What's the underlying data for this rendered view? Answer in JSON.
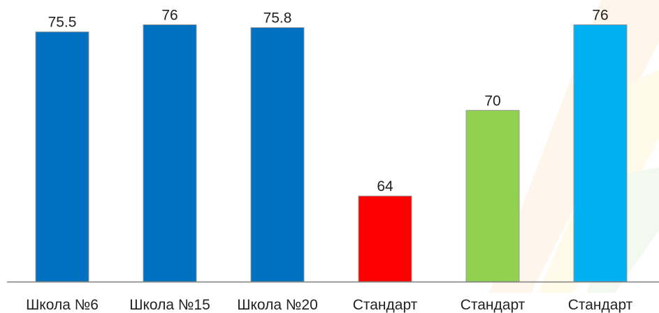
{
  "chart_data": {
    "type": "bar",
    "categories": [
      "Школа №6",
      "Школа №15",
      "Школа №20",
      "Стандарт",
      "Стандарт",
      "Стандарт"
    ],
    "values": [
      75.5,
      76,
      75.8,
      64,
      70,
      76
    ],
    "colors": [
      "#0070c0",
      "#0070c0",
      "#0070c0",
      "#ff0000",
      "#92d050",
      "#00b0f0"
    ],
    "ylim": [
      58,
      77
    ]
  }
}
